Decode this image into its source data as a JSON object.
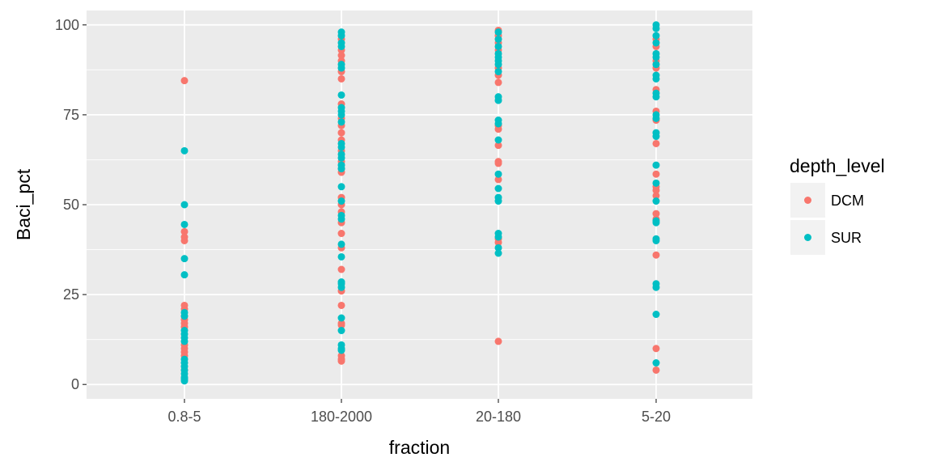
{
  "chart_data": {
    "type": "scatter",
    "title": "",
    "xlabel": "fraction",
    "ylabel": "Baci_pct",
    "categories": [
      "0.8-5",
      "180-2000",
      "20-180",
      "5-20"
    ],
    "y_ticks": [
      0,
      25,
      50,
      75,
      100
    ],
    "y_tick_labels": [
      "0",
      "25",
      "50",
      "75",
      "100"
    ],
    "ylim": [
      -4,
      104
    ],
    "grid": true,
    "legend": {
      "title": "depth_level",
      "position": "right",
      "entries": [
        "DCM",
        "SUR"
      ]
    },
    "series": [
      {
        "name": "DCM",
        "color": "#F8766D",
        "points": [
          [
            "0.8-5",
            84.5
          ],
          [
            "0.8-5",
            42.5
          ],
          [
            "0.8-5",
            41
          ],
          [
            "0.8-5",
            40
          ],
          [
            "0.8-5",
            22
          ],
          [
            "0.8-5",
            21
          ],
          [
            "0.8-5",
            19
          ],
          [
            "0.8-5",
            18
          ],
          [
            "0.8-5",
            17
          ],
          [
            "0.8-5",
            16
          ],
          [
            "0.8-5",
            11
          ],
          [
            "0.8-5",
            10
          ],
          [
            "0.8-5",
            9
          ],
          [
            "0.8-5",
            8
          ],
          [
            "0.8-5",
            4
          ],
          [
            "180-2000",
            96
          ],
          [
            "180-2000",
            93
          ],
          [
            "180-2000",
            91.5
          ],
          [
            "180-2000",
            90
          ],
          [
            "180-2000",
            87
          ],
          [
            "180-2000",
            85
          ],
          [
            "180-2000",
            78
          ],
          [
            "180-2000",
            74
          ],
          [
            "180-2000",
            72
          ],
          [
            "180-2000",
            70
          ],
          [
            "180-2000",
            68
          ],
          [
            "180-2000",
            65
          ],
          [
            "180-2000",
            62
          ],
          [
            "180-2000",
            60
          ],
          [
            "180-2000",
            59
          ],
          [
            "180-2000",
            52
          ],
          [
            "180-2000",
            50
          ],
          [
            "180-2000",
            48
          ],
          [
            "180-2000",
            45
          ],
          [
            "180-2000",
            42
          ],
          [
            "180-2000",
            38
          ],
          [
            "180-2000",
            32
          ],
          [
            "180-2000",
            26
          ],
          [
            "180-2000",
            22
          ],
          [
            "180-2000",
            17
          ],
          [
            "180-2000",
            16.5
          ],
          [
            "180-2000",
            8
          ],
          [
            "180-2000",
            7
          ],
          [
            "180-2000",
            6.5
          ],
          [
            "20-180",
            98.5
          ],
          [
            "20-180",
            97
          ],
          [
            "20-180",
            95
          ],
          [
            "20-180",
            93
          ],
          [
            "20-180",
            88
          ],
          [
            "20-180",
            86
          ],
          [
            "20-180",
            84
          ],
          [
            "20-180",
            72
          ],
          [
            "20-180",
            71
          ],
          [
            "20-180",
            66.5
          ],
          [
            "20-180",
            62
          ],
          [
            "20-180",
            61.5
          ],
          [
            "20-180",
            57
          ],
          [
            "20-180",
            40.5
          ],
          [
            "20-180",
            39.5
          ],
          [
            "20-180",
            12
          ],
          [
            "5-20",
            96
          ],
          [
            "5-20",
            94
          ],
          [
            "5-20",
            90
          ],
          [
            "5-20",
            88
          ],
          [
            "5-20",
            82
          ],
          [
            "5-20",
            76
          ],
          [
            "5-20",
            73.5
          ],
          [
            "5-20",
            67
          ],
          [
            "5-20",
            58.5
          ],
          [
            "5-20",
            55
          ],
          [
            "5-20",
            54
          ],
          [
            "5-20",
            52.5
          ],
          [
            "5-20",
            47.5
          ],
          [
            "5-20",
            46
          ],
          [
            "5-20",
            36
          ],
          [
            "5-20",
            10
          ],
          [
            "5-20",
            4
          ]
        ]
      },
      {
        "name": "SUR",
        "color": "#00BFC4",
        "points": [
          [
            "0.8-5",
            65
          ],
          [
            "0.8-5",
            50
          ],
          [
            "0.8-5",
            44.5
          ],
          [
            "0.8-5",
            35
          ],
          [
            "0.8-5",
            30.5
          ],
          [
            "0.8-5",
            20
          ],
          [
            "0.8-5",
            19
          ],
          [
            "0.8-5",
            15
          ],
          [
            "0.8-5",
            14
          ],
          [
            "0.8-5",
            13
          ],
          [
            "0.8-5",
            12
          ],
          [
            "0.8-5",
            7
          ],
          [
            "0.8-5",
            6
          ],
          [
            "0.8-5",
            5
          ],
          [
            "0.8-5",
            4
          ],
          [
            "0.8-5",
            3
          ],
          [
            "0.8-5",
            2
          ],
          [
            "0.8-5",
            1.5
          ],
          [
            "0.8-5",
            1
          ],
          [
            "180-2000",
            98
          ],
          [
            "180-2000",
            97
          ],
          [
            "180-2000",
            95
          ],
          [
            "180-2000",
            94
          ],
          [
            "180-2000",
            89
          ],
          [
            "180-2000",
            88
          ],
          [
            "180-2000",
            80.5
          ],
          [
            "180-2000",
            77
          ],
          [
            "180-2000",
            76
          ],
          [
            "180-2000",
            75
          ],
          [
            "180-2000",
            73
          ],
          [
            "180-2000",
            67
          ],
          [
            "180-2000",
            66
          ],
          [
            "180-2000",
            64
          ],
          [
            "180-2000",
            63
          ],
          [
            "180-2000",
            61
          ],
          [
            "180-2000",
            60
          ],
          [
            "180-2000",
            55
          ],
          [
            "180-2000",
            51
          ],
          [
            "180-2000",
            47
          ],
          [
            "180-2000",
            46
          ],
          [
            "180-2000",
            39
          ],
          [
            "180-2000",
            35.5
          ],
          [
            "180-2000",
            28.5
          ],
          [
            "180-2000",
            28
          ],
          [
            "180-2000",
            27
          ],
          [
            "180-2000",
            18.5
          ],
          [
            "180-2000",
            15
          ],
          [
            "180-2000",
            11
          ],
          [
            "180-2000",
            10
          ],
          [
            "180-2000",
            9.5
          ],
          [
            "20-180",
            98
          ],
          [
            "20-180",
            96
          ],
          [
            "20-180",
            94
          ],
          [
            "20-180",
            92
          ],
          [
            "20-180",
            91
          ],
          [
            "20-180",
            90
          ],
          [
            "20-180",
            89
          ],
          [
            "20-180",
            87
          ],
          [
            "20-180",
            80
          ],
          [
            "20-180",
            79
          ],
          [
            "20-180",
            73.5
          ],
          [
            "20-180",
            72.5
          ],
          [
            "20-180",
            68
          ],
          [
            "20-180",
            58.5
          ],
          [
            "20-180",
            54.5
          ],
          [
            "20-180",
            52
          ],
          [
            "20-180",
            51
          ],
          [
            "20-180",
            42
          ],
          [
            "20-180",
            41
          ],
          [
            "20-180",
            38
          ],
          [
            "20-180",
            36.5
          ],
          [
            "5-20",
            100
          ],
          [
            "5-20",
            99
          ],
          [
            "5-20",
            97
          ],
          [
            "5-20",
            95
          ],
          [
            "5-20",
            92
          ],
          [
            "5-20",
            91
          ],
          [
            "5-20",
            89
          ],
          [
            "5-20",
            86
          ],
          [
            "5-20",
            85
          ],
          [
            "5-20",
            81
          ],
          [
            "5-20",
            80
          ],
          [
            "5-20",
            75
          ],
          [
            "5-20",
            74
          ],
          [
            "5-20",
            70
          ],
          [
            "5-20",
            69
          ],
          [
            "5-20",
            61
          ],
          [
            "5-20",
            56
          ],
          [
            "5-20",
            51
          ],
          [
            "5-20",
            45.5
          ],
          [
            "5-20",
            45
          ],
          [
            "5-20",
            40.5
          ],
          [
            "5-20",
            40
          ],
          [
            "5-20",
            28
          ],
          [
            "5-20",
            27
          ],
          [
            "5-20",
            19.5
          ],
          [
            "5-20",
            6
          ]
        ]
      }
    ]
  }
}
